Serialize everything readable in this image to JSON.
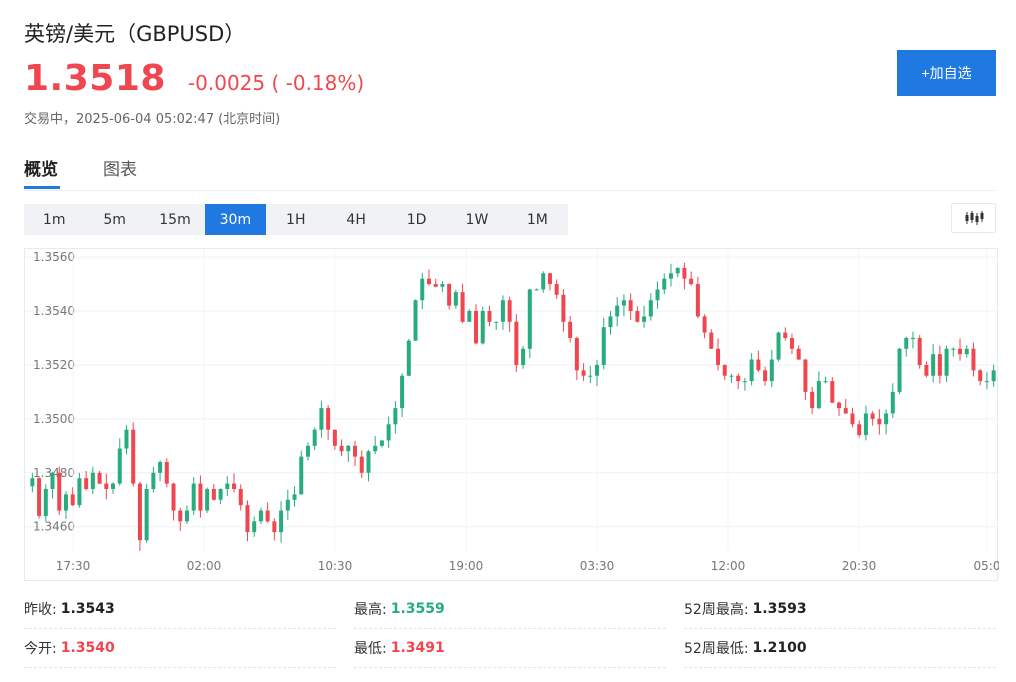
{
  "header": {
    "title": "英镑/美元（GBPUSD）",
    "price": "1.3518",
    "change": "-0.0025 ( -0.18%)",
    "status": "交易中，",
    "timestamp": "2025-06-04 05:02:47",
    "timezone": "(北京时间)",
    "add_button": "+加自选"
  },
  "tabs": [
    {
      "label": "概览",
      "active": true
    },
    {
      "label": "图表",
      "active": false
    }
  ],
  "periods": [
    {
      "label": "1m",
      "active": false
    },
    {
      "label": "5m",
      "active": false
    },
    {
      "label": "15m",
      "active": false
    },
    {
      "label": "30m",
      "active": true
    },
    {
      "label": "1H",
      "active": false
    },
    {
      "label": "4H",
      "active": false
    },
    {
      "label": "1D",
      "active": false
    },
    {
      "label": "1W",
      "active": false
    },
    {
      "label": "1M",
      "active": false
    }
  ],
  "stats": [
    {
      "label": "昨收:",
      "value": "1.3543",
      "color": "dark"
    },
    {
      "label": "最高:",
      "value": "1.3559",
      "color": "green"
    },
    {
      "label": "52周最高:",
      "value": "1.3593",
      "color": "dark"
    },
    {
      "label": "今开:",
      "value": "1.3540",
      "color": "red"
    },
    {
      "label": "最低:",
      "value": "1.3491",
      "color": "red"
    },
    {
      "label": "52周最低:",
      "value": "1.2100",
      "color": "dark"
    }
  ],
  "colors": {
    "up": "#27ac7c",
    "down": "#f0464f",
    "accent": "#1f79e0"
  },
  "chart_data": {
    "type": "candlestick",
    "yticks": [
      "1.3560",
      "1.3540",
      "1.3520",
      "1.3500",
      "1.3480",
      "1.3460"
    ],
    "ylim": [
      1.3451,
      1.3563
    ],
    "xticks": [
      "17:30",
      "02:00",
      "10:30",
      "19:00",
      "03:30",
      "12:00",
      "20:30",
      "05:0"
    ],
    "grid": true,
    "closes": [
      1.3478,
      1.3464,
      1.3474,
      1.348,
      1.3466,
      1.3472,
      1.3468,
      1.3478,
      1.3474,
      1.348,
      1.3476,
      1.3474,
      1.3476,
      1.3489,
      1.3496,
      1.3476,
      1.3455,
      1.3474,
      1.348,
      1.3484,
      1.3476,
      1.3466,
      1.3462,
      1.3466,
      1.3476,
      1.3466,
      1.3474,
      1.347,
      1.3474,
      1.3476,
      1.3474,
      1.3468,
      1.3458,
      1.3462,
      1.3466,
      1.3462,
      1.3458,
      1.3466,
      1.347,
      1.3472,
      1.3486,
      1.349,
      1.3496,
      1.3504,
      1.3496,
      1.349,
      1.3488,
      1.349,
      1.3486,
      1.348,
      1.3488,
      1.349,
      1.3492,
      1.3498,
      1.3504,
      1.3516,
      1.3529,
      1.3544,
      1.3552,
      1.355,
      1.3549,
      1.355,
      1.3542,
      1.3547,
      1.3536,
      1.354,
      1.3528,
      1.354,
      1.3536,
      1.3536,
      1.3544,
      1.3536,
      1.352,
      1.3526,
      1.3548,
      1.3548,
      1.3554,
      1.355,
      1.3546,
      1.3536,
      1.353,
      1.3518,
      1.3516,
      1.3516,
      1.352,
      1.3534,
      1.3538,
      1.3542,
      1.3544,
      1.354,
      1.3536,
      1.3538,
      1.3544,
      1.3548,
      1.3552,
      1.3554,
      1.3556,
      1.3552,
      1.355,
      1.3538,
      1.3532,
      1.3526,
      1.352,
      1.3516,
      1.3516,
      1.3514,
      1.3514,
      1.3522,
      1.3518,
      1.3514,
      1.3522,
      1.3532,
      1.353,
      1.3526,
      1.3522,
      1.351,
      1.3504,
      1.3514,
      1.3514,
      1.3506,
      1.3504,
      1.3502,
      1.3498,
      1.3494,
      1.3502,
      1.35,
      1.3498,
      1.3502,
      1.351,
      1.3526,
      1.353,
      1.353,
      1.352,
      1.3516,
      1.3524,
      1.3516,
      1.3526,
      1.3526,
      1.3524,
      1.3526,
      1.3518,
      1.3514,
      1.3514,
      1.3518
    ]
  }
}
